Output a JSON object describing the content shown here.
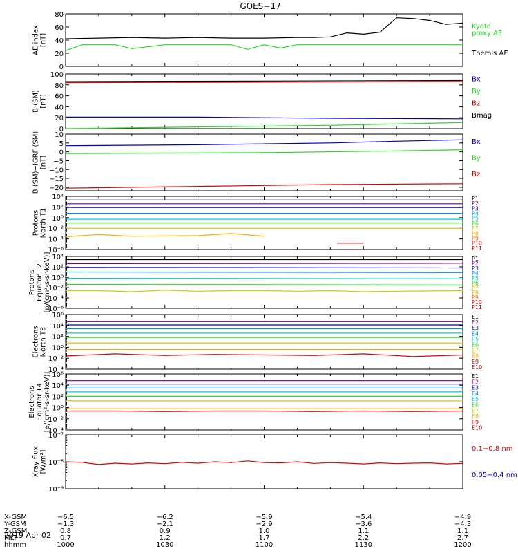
{
  "title": "GOES−17",
  "date": "2019 Apr 02",
  "x_time": {
    "labels": [
      "1000",
      "1030",
      "1100",
      "1130",
      "1200"
    ],
    "start_minutes": 600,
    "end_minutes": 720
  },
  "ephemeris": {
    "row_labels": [
      "X-GSM",
      "Y-GSM",
      "Z-GSM",
      "MLT",
      "hhmm"
    ],
    "columns": [
      [
        "−6.5",
        "−1.3",
        "0.8",
        "0.7",
        "1000"
      ],
      [
        "−6.2",
        "−2.1",
        "0.9",
        "1.2",
        "1030"
      ],
      [
        "−5.9",
        "−2.9",
        "1.0",
        "1.7",
        "1100"
      ],
      [
        "−5.4",
        "−3.6",
        "1.1",
        "2.2",
        "1130"
      ],
      [
        "−4.9",
        "−4.3",
        "1.1",
        "2.7",
        "1200"
      ]
    ]
  },
  "colors": {
    "black": "#000000",
    "red": "#dd0000",
    "green": "#22dd22",
    "blue": "#0000cc"
  },
  "chart_data": [
    {
      "type": "line",
      "ylabel": [
        "AE index",
        "[nT]"
      ],
      "ylim": [
        0,
        80
      ],
      "y_ticks": [
        "0",
        "20",
        "40",
        "60",
        "80"
      ],
      "legend": [
        {
          "text": "Kyoto",
          "color": "#22dd22"
        },
        {
          "text": "proxy AE",
          "color": "#22dd22"
        },
        {
          "text": "Themis AE",
          "color": "#000000"
        }
      ],
      "series": [
        {
          "name": "Kyoto proxy AE",
          "color": "#22dd22",
          "x": [
            600,
            605,
            615,
            620,
            630,
            635,
            640,
            650,
            655,
            660,
            665,
            670,
            675,
            680,
            690,
            700,
            710,
            720
          ],
          "y": [
            24,
            33,
            33,
            27,
            33,
            33,
            33,
            33,
            26,
            33,
            28,
            33,
            33,
            33,
            33,
            33,
            33,
            33
          ]
        },
        {
          "name": "Themis AE",
          "color": "#000000",
          "x": [
            600,
            610,
            620,
            630,
            640,
            650,
            660,
            670,
            675,
            680,
            685,
            690,
            695,
            700,
            705,
            710,
            715,
            720
          ],
          "y": [
            42,
            43,
            44,
            43,
            44,
            43,
            43,
            44,
            44,
            45,
            51,
            49,
            52,
            74,
            73,
            70,
            64,
            66
          ]
        }
      ]
    },
    {
      "type": "line",
      "ylabel": [
        "B (SM)",
        "[nT]"
      ],
      "ylim": [
        0,
        100
      ],
      "y_ticks": [
        "0",
        "20",
        "40",
        "60",
        "80",
        "100"
      ],
      "legend": [
        {
          "text": "Bx",
          "color": "#0000cc"
        },
        {
          "text": "By",
          "color": "#22dd22"
        },
        {
          "text": "Bz",
          "color": "#dd0000"
        },
        {
          "text": "Bmag",
          "color": "#000000"
        }
      ],
      "series": [
        {
          "name": "Bmag",
          "color": "#000000",
          "x": [
            600,
            660,
            720
          ],
          "y": [
            86,
            87,
            88
          ]
        },
        {
          "name": "Bz",
          "color": "#dd0000",
          "x": [
            600,
            660,
            720
          ],
          "y": [
            84,
            85,
            86
          ]
        },
        {
          "name": "Bx",
          "color": "#0000cc",
          "x": [
            600,
            640,
            680,
            720
          ],
          "y": [
            21,
            21,
            19,
            18
          ]
        },
        {
          "name": "By",
          "color": "#22dd22",
          "x": [
            600,
            640,
            680,
            720
          ],
          "y": [
            0,
            3,
            6,
            11
          ]
        }
      ]
    },
    {
      "type": "line",
      "ylabel": [
        "B (SM)−IGRF (SM)",
        "[nT]"
      ],
      "ylim": [
        -22,
        10
      ],
      "y_ticks": [
        "−20",
        "−15",
        "−10",
        "−5",
        "0",
        "5",
        "10"
      ],
      "y_tick_values": [
        -20,
        -15,
        -10,
        -5,
        0,
        5,
        10
      ],
      "legend": [
        {
          "text": "Bx",
          "color": "#0000cc"
        },
        {
          "text": "By",
          "color": "#22dd22"
        },
        {
          "text": "Bz",
          "color": "#dd0000"
        }
      ],
      "series": [
        {
          "name": "Bx",
          "color": "#0000cc",
          "x": [
            600,
            640,
            680,
            700,
            720
          ],
          "y": [
            3.5,
            4,
            5,
            6,
            6.8
          ]
        },
        {
          "name": "By",
          "color": "#22dd22",
          "x": [
            600,
            660,
            700,
            720
          ],
          "y": [
            -1,
            -0.5,
            0.5,
            1.2
          ]
        },
        {
          "name": "Bz",
          "color": "#dd0000",
          "x": [
            600,
            640,
            680,
            720
          ],
          "y": [
            -20.5,
            -19.5,
            -18.5,
            -18
          ]
        }
      ]
    },
    {
      "type": "line",
      "log": true,
      "ylabel": [
        "Protons",
        "North T1"
      ],
      "y_exp_range": [
        -6,
        4
      ],
      "y_tick_exps": [
        4,
        2,
        0,
        -2,
        -4,
        -6
      ],
      "legend": [
        {
          "text": "P1",
          "color": "#000000"
        },
        {
          "text": "P2",
          "color": "#770077"
        },
        {
          "text": "P3",
          "color": "#0000cc"
        },
        {
          "text": "P4",
          "color": "#0088ff"
        },
        {
          "text": "P5",
          "color": "#00cccc"
        },
        {
          "text": "P6",
          "color": "#22dd22"
        },
        {
          "text": "P7",
          "color": "#cccc00"
        },
        {
          "text": "P8",
          "color": "#ffaa00"
        },
        {
          "text": "P9",
          "color": "#ff6600"
        },
        {
          "text": "P10",
          "color": "#dd0000"
        },
        {
          "text": "P11",
          "color": "#aa0000"
        }
      ],
      "series": [
        {
          "name": "P1",
          "color": "#000000",
          "x": [
            600,
            720
          ],
          "y": [
            3.3,
            3.3
          ]
        },
        {
          "name": "P2",
          "color": "#770077",
          "x": [
            600,
            720
          ],
          "y": [
            2.6,
            2.6
          ]
        },
        {
          "name": "P3",
          "color": "#0000cc",
          "x": [
            600,
            720
          ],
          "y": [
            1.9,
            1.9
          ]
        },
        {
          "name": "P4",
          "color": "#0088ff",
          "x": [
            600,
            720
          ],
          "y": [
            0.8,
            0.8
          ]
        },
        {
          "name": "P5",
          "color": "#00cccc",
          "x": [
            600,
            720
          ],
          "y": [
            -0.3,
            -0.3
          ]
        },
        {
          "name": "P6",
          "color": "#22dd22",
          "x": [
            600,
            720
          ],
          "y": [
            -1.0,
            -1.0
          ]
        },
        {
          "name": "P7",
          "color": "#cccc00",
          "x": [
            600,
            720
          ],
          "y": [
            -2.0,
            -2.0
          ]
        },
        {
          "name": "P8",
          "color": "#ffaa00",
          "x": [
            600,
            610,
            620,
            640,
            650,
            660
          ],
          "y": [
            -3.6,
            -3.2,
            -3.5,
            -3.4,
            -3.0,
            -3.5
          ]
        },
        {
          "name": "P10",
          "color": "#dd0000",
          "x": [
            682,
            690
          ],
          "y": [
            -4.8,
            -4.8
          ]
        }
      ]
    },
    {
      "type": "line",
      "log": true,
      "ylabel": [
        "Protons",
        "Equator T2",
        "[p/(cm²-s-sr-keV)]"
      ],
      "y_exp_range": [
        -6,
        4
      ],
      "y_tick_exps": [
        4,
        2,
        0,
        -2,
        -4,
        -6
      ],
      "legend": [
        {
          "text": "P1",
          "color": "#000000"
        },
        {
          "text": "P2",
          "color": "#770077"
        },
        {
          "text": "P3",
          "color": "#0000cc"
        },
        {
          "text": "P4",
          "color": "#0088ff"
        },
        {
          "text": "P5",
          "color": "#00cccc"
        },
        {
          "text": "P6",
          "color": "#22dd22"
        },
        {
          "text": "P7",
          "color": "#cccc00"
        },
        {
          "text": "P8",
          "color": "#ffaa00"
        },
        {
          "text": "P9",
          "color": "#ff6600"
        },
        {
          "text": "P10",
          "color": "#dd0000"
        },
        {
          "text": "P11",
          "color": "#aa0000"
        }
      ],
      "series": [
        {
          "name": "P1",
          "color": "#000000",
          "x": [
            600,
            720
          ],
          "y": [
            3.4,
            3.4
          ]
        },
        {
          "name": "P2",
          "color": "#770077",
          "x": [
            600,
            720
          ],
          "y": [
            2.6,
            2.7
          ]
        },
        {
          "name": "P3",
          "color": "#0000cc",
          "x": [
            600,
            720
          ],
          "y": [
            1.9,
            1.8
          ]
        },
        {
          "name": "P4",
          "color": "#0088ff",
          "x": [
            600,
            720
          ],
          "y": [
            1.0,
            0.9
          ]
        },
        {
          "name": "P5",
          "color": "#00cccc",
          "x": [
            600,
            720
          ],
          "y": [
            -0.2,
            -0.3
          ]
        },
        {
          "name": "P6",
          "color": "#22dd22",
          "x": [
            600,
            720
          ],
          "y": [
            -1.4,
            -1.5
          ]
        },
        {
          "name": "P7",
          "color": "#cccc00",
          "x": [
            600,
            610,
            620,
            630,
            640,
            650,
            660,
            670,
            680,
            690,
            700,
            720
          ],
          "y": [
            -2.6,
            -2.6,
            -2.8,
            -2.5,
            -2.7,
            -2.6,
            -2.6,
            -2.7,
            -2.6,
            -2.8,
            -2.7,
            -2.6
          ]
        }
      ]
    },
    {
      "type": "line",
      "log": true,
      "ylabel": [
        "Electrons",
        "North T3"
      ],
      "y_exp_range": [
        -4,
        6
      ],
      "y_tick_exps": [
        6,
        4,
        2,
        0,
        -2,
        -4
      ],
      "legend": [
        {
          "text": "E1",
          "color": "#000000"
        },
        {
          "text": "E2",
          "color": "#770077"
        },
        {
          "text": "E3",
          "color": "#0000cc"
        },
        {
          "text": "E4",
          "color": "#0088ff"
        },
        {
          "text": "E5",
          "color": "#00cccc"
        },
        {
          "text": "E6",
          "color": "#22dd22"
        },
        {
          "text": "E7",
          "color": "#cccc00"
        },
        {
          "text": "E8",
          "color": "#ffaa00"
        },
        {
          "text": "E9",
          "color": "#dd0000"
        },
        {
          "text": "E10",
          "color": "#aa0000"
        }
      ],
      "series": [
        {
          "name": "E1",
          "color": "#770077",
          "x": [
            600,
            720
          ],
          "y": [
            4.7,
            4.7
          ]
        },
        {
          "name": "E3",
          "color": "#0000cc",
          "x": [
            600,
            720
          ],
          "y": [
            4.1,
            4.1
          ]
        },
        {
          "name": "E4",
          "color": "#0088ff",
          "x": [
            600,
            720
          ],
          "y": [
            3.4,
            3.4
          ]
        },
        {
          "name": "E5",
          "color": "#00cccc",
          "x": [
            600,
            720
          ],
          "y": [
            2.6,
            2.6
          ]
        },
        {
          "name": "E6",
          "color": "#22dd22",
          "x": [
            600,
            720
          ],
          "y": [
            1.8,
            1.8
          ]
        },
        {
          "name": "E7",
          "color": "#cccc00",
          "x": [
            600,
            720
          ],
          "y": [
            0.8,
            0.8
          ]
        },
        {
          "name": "E8",
          "color": "#ffaa00",
          "x": [
            600,
            720
          ],
          "y": [
            -0.4,
            -0.4
          ]
        },
        {
          "name": "E9",
          "color": "#dd0000",
          "x": [
            600,
            615,
            630,
            645,
            660,
            675,
            690,
            705,
            720
          ],
          "y": [
            -1.6,
            -1.2,
            -1.5,
            -1.3,
            -1.4,
            -1.5,
            -1.2,
            -1.7,
            -1.4
          ]
        }
      ]
    },
    {
      "type": "line",
      "log": true,
      "ylabel": [
        "Electrons",
        "Equator T4",
        "[e/(cm²-s-sr-keV)]"
      ],
      "y_exp_range": [
        -4,
        6
      ],
      "y_tick_exps": [
        6,
        4,
        2,
        0,
        -2,
        -4
      ],
      "legend": [
        {
          "text": "E1",
          "color": "#000000"
        },
        {
          "text": "E2",
          "color": "#770077"
        },
        {
          "text": "E3",
          "color": "#0000cc"
        },
        {
          "text": "E4",
          "color": "#0088ff"
        },
        {
          "text": "E5",
          "color": "#00cccc"
        },
        {
          "text": "E6",
          "color": "#22dd22"
        },
        {
          "text": "E7",
          "color": "#cccc00"
        },
        {
          "text": "E8",
          "color": "#ffaa00"
        },
        {
          "text": "E9",
          "color": "#dd0000"
        },
        {
          "text": "E10",
          "color": "#aa0000"
        }
      ],
      "series": [
        {
          "name": "E1",
          "color": "#770077",
          "x": [
            600,
            720
          ],
          "y": [
            4.8,
            4.8
          ]
        },
        {
          "name": "E3",
          "color": "#0000cc",
          "x": [
            600,
            720
          ],
          "y": [
            4.2,
            4.2
          ]
        },
        {
          "name": "E4",
          "color": "#0088ff",
          "x": [
            600,
            720
          ],
          "y": [
            3.5,
            3.5
          ]
        },
        {
          "name": "E5",
          "color": "#00cccc",
          "x": [
            600,
            720
          ],
          "y": [
            2.8,
            2.8
          ]
        },
        {
          "name": "E6",
          "color": "#22dd22",
          "x": [
            600,
            720
          ],
          "y": [
            2.0,
            2.0
          ]
        },
        {
          "name": "E7",
          "color": "#cccc00",
          "x": [
            600,
            720
          ],
          "y": [
            1.2,
            1.2
          ]
        },
        {
          "name": "E8",
          "color": "#ffaa00",
          "x": [
            600,
            720
          ],
          "y": [
            -0.2,
            -0.2
          ]
        },
        {
          "name": "E9",
          "color": "#dd0000",
          "x": [
            600,
            615,
            630,
            645,
            660,
            675,
            690,
            705,
            720
          ],
          "y": [
            -0.6,
            -0.6,
            -0.7,
            -0.6,
            -0.6,
            -0.7,
            -0.6,
            -0.7,
            -0.6
          ]
        }
      ]
    },
    {
      "type": "line",
      "log": true,
      "ylabel": [
        "Xray flux",
        "[W/m²]"
      ],
      "y_exp_range": [
        -9,
        -7
      ],
      "y_tick_exps": [
        -7,
        -8,
        -9
      ],
      "legend": [
        {
          "text": "0.1−0.8 nm",
          "color": "#dd0000"
        },
        {
          "text": "0.05−0.4 nm",
          "color": "#0000cc"
        }
      ],
      "series": [
        {
          "name": "0.1−0.8 nm",
          "color": "#dd0000",
          "x": [
            600,
            605,
            610,
            615,
            620,
            625,
            630,
            635,
            640,
            645,
            650,
            655,
            660,
            665,
            670,
            675,
            680,
            685,
            690,
            695,
            700,
            705,
            710,
            715,
            720
          ],
          "y": [
            -8.0,
            -8.02,
            -8.1,
            -8.05,
            -8.08,
            -8.04,
            -8.07,
            -8.02,
            -8.05,
            -8.0,
            -8.03,
            -7.97,
            -8.03,
            -8.04,
            -8.0,
            -8.06,
            -8.03,
            -8.05,
            -8.08,
            -8.04,
            -8.07,
            -8.05,
            -8.04,
            -8.08,
            -8.06
          ]
        }
      ]
    }
  ]
}
